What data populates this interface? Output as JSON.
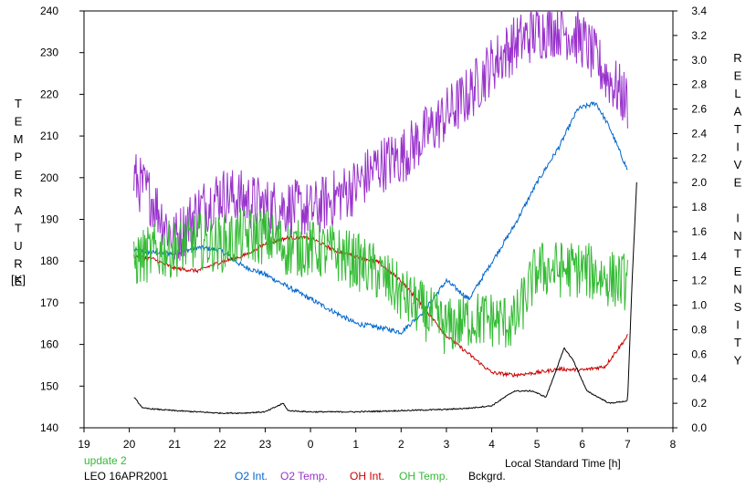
{
  "chart_data": {
    "type": "line",
    "left_axis_title": "TEMPERATURE",
    "left_axis_unit": "[K]",
    "right_axis_title": "RELATIVE INTENSITY",
    "xlabel": "Local Standard Time [h]",
    "x_range": [
      19,
      32
    ],
    "x_ticks": [
      19,
      20,
      21,
      22,
      23,
      24,
      25,
      26,
      27,
      28,
      29,
      30,
      31,
      32
    ],
    "x_tick_labels": [
      "19",
      "20",
      "21",
      "22",
      "23",
      "0",
      "1",
      "2",
      "3",
      "4",
      "5",
      "6",
      "7",
      "8"
    ],
    "yleft_range": [
      140,
      240
    ],
    "yleft_ticks": [
      "140",
      "150",
      "160",
      "170",
      "180",
      "190",
      "200",
      "210",
      "220",
      "230",
      "240"
    ],
    "yright_range": [
      0,
      3.4
    ],
    "yright_ticks": [
      "0.0",
      "0.2",
      "0.4",
      "0.6",
      "0.8",
      "1.0",
      "1.2",
      "1.4",
      "1.6",
      "1.8",
      "2.0",
      "2.2",
      "2.4",
      "2.6",
      "2.8",
      "3.0",
      "3.2",
      "3.4"
    ],
    "grid": false,
    "series": [
      {
        "name": "O2 Int.",
        "axis": "right",
        "color": "#0066cc",
        "noise": 0.02,
        "x": [
          20.1,
          20.5,
          21,
          21.5,
          22,
          22.5,
          23,
          23.5,
          24,
          24.5,
          25,
          25.5,
          26,
          26.5,
          27,
          27.5,
          28,
          28.5,
          29,
          29.5,
          29.9,
          30.3,
          30.6,
          31
        ],
        "y": [
          1.45,
          1.43,
          1.42,
          1.47,
          1.45,
          1.32,
          1.25,
          1.15,
          1.05,
          0.95,
          0.85,
          0.82,
          0.78,
          0.95,
          1.2,
          1.05,
          1.35,
          1.65,
          2.0,
          2.3,
          2.6,
          2.65,
          2.45,
          2.1
        ]
      },
      {
        "name": "O2 Temp.",
        "axis": "left",
        "color": "#9933cc",
        "noise": 7,
        "x": [
          20.1,
          20.5,
          21,
          21.5,
          22,
          22.5,
          23,
          23.5,
          24,
          24.5,
          25,
          25.5,
          26,
          26.5,
          27,
          27.5,
          28,
          28.5,
          29,
          29.5,
          30,
          30.5,
          31
        ],
        "y": [
          200,
          195,
          185,
          192,
          196,
          195,
          193,
          193,
          192,
          195,
          198,
          203,
          205,
          210,
          215,
          220,
          227,
          232,
          235,
          236,
          233,
          225,
          218
        ]
      },
      {
        "name": "OH Int.",
        "axis": "right",
        "color": "#cc0000",
        "noise": 0.015,
        "x": [
          20.1,
          20.5,
          21,
          21.5,
          22,
          22.5,
          23,
          23.5,
          24,
          24.5,
          25,
          25.5,
          26,
          26.5,
          27,
          27.5,
          28,
          28.5,
          29,
          29.5,
          30,
          30.5,
          31
        ],
        "y": [
          1.4,
          1.38,
          1.3,
          1.28,
          1.35,
          1.4,
          1.5,
          1.55,
          1.55,
          1.45,
          1.4,
          1.35,
          1.2,
          0.98,
          0.75,
          0.6,
          0.45,
          0.43,
          0.45,
          0.48,
          0.47,
          0.5,
          0.75
        ]
      },
      {
        "name": "OH Temp.",
        "axis": "left",
        "color": "#33bb33",
        "noise": 7,
        "x": [
          20.1,
          20.5,
          21,
          21.5,
          22,
          22.5,
          23,
          23.5,
          24,
          24.5,
          25,
          25.5,
          26,
          26.5,
          27,
          27.5,
          28,
          28.5,
          29,
          29.5,
          30,
          30.5,
          31
        ],
        "y": [
          180,
          182,
          183,
          185,
          184,
          186,
          186,
          183,
          183,
          182,
          180,
          177,
          172,
          168,
          164,
          166,
          166,
          165,
          178,
          178,
          178,
          176,
          175
        ]
      },
      {
        "name": "Bckgrd.",
        "axis": "right",
        "color": "#000000",
        "noise": 0.005,
        "x": [
          20.1,
          20.3,
          21,
          21.5,
          22,
          22.5,
          23,
          23.4,
          23.5,
          24,
          25,
          26,
          27,
          27.5,
          28,
          28.5,
          28.9,
          29.2,
          29.6,
          29.8,
          30.1,
          30.6,
          31,
          31.1,
          31.2
        ],
        "y": [
          0.25,
          0.16,
          0.14,
          0.13,
          0.12,
          0.12,
          0.13,
          0.2,
          0.14,
          0.13,
          0.13,
          0.14,
          0.15,
          0.16,
          0.18,
          0.3,
          0.3,
          0.25,
          0.65,
          0.55,
          0.3,
          0.2,
          0.22,
          1.2,
          2.0
        ]
      }
    ]
  },
  "footer": {
    "update_label": "update 2",
    "dataset_label": "LEO 16APR2001"
  },
  "colors": {
    "update_label": "#33bb33"
  }
}
